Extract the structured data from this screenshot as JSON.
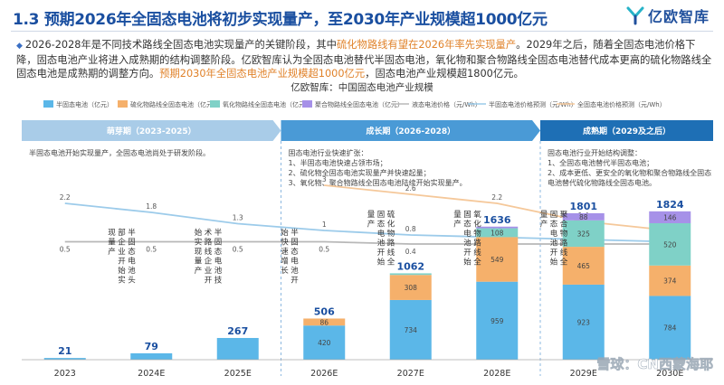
{
  "header": {
    "title": "1.3 预期2026年全固态电池将初步实现量产，至2030年产业规模超1000亿元",
    "logo_text": "亿欧智库"
  },
  "summary": {
    "bullet": "◆",
    "part1": "2026-2028年是不同技术路线全固态电池实现量产的关键阶段，其中",
    "highlight1": "硫化物路线有望在2026年率先实现量产",
    "part2": "。2029年之后，随着全固态电池价格下降，固态电池产业将进入成熟期的结构调整阶段。亿欧智库认为全固态电池替代半固态电池，氧化物和聚合物路线全固态电池替代成本更高的硫化物路线全固态电池是成熟期的调整方向。",
    "highlight2": "预期2030年全固态电池产业规模超1000亿元",
    "part3": "，固态电池产业规模超1800亿元。"
  },
  "chart_data": {
    "type": "bar",
    "title": "亿欧智库：中国固态电池产业规模",
    "categories": [
      "2023",
      "2024E",
      "2025E",
      "2026E",
      "2027E",
      "2028E",
      "2029E",
      "2030E"
    ],
    "series": [
      {
        "name": "半固态电池（亿元）",
        "kind": "bar",
        "color": "#5bb7e8",
        "values": [
          21,
          79,
          267,
          420,
          734,
          959,
          923,
          784
        ]
      },
      {
        "name": "硫化物路线全固态电池（亿元）",
        "kind": "bar",
        "color": "#f5b06b",
        "values": [
          null,
          null,
          null,
          86,
          308,
          549,
          465,
          374
        ]
      },
      {
        "name": "氧化物路线全固态电池（亿元）",
        "kind": "bar",
        "color": "#7fd1c7",
        "values": [
          null,
          null,
          null,
          null,
          20,
          108,
          325,
          520
        ]
      },
      {
        "name": "聚合物路线全固态电池（亿元）",
        "kind": "bar",
        "color": "#a691e8",
        "values": [
          null,
          null,
          null,
          null,
          null,
          20,
          88,
          146
        ]
      },
      {
        "name": "液态电池价格（元/Wh）",
        "kind": "line",
        "color": "#b8b8b8",
        "values": [
          0.5,
          0.5,
          0.5,
          0.5,
          0.4,
          0.4,
          0.4,
          0.4
        ]
      },
      {
        "name": "半固态电池价格预测（元/Wh）",
        "kind": "line",
        "color": "#9ccbea",
        "values": [
          2.2,
          1.8,
          1.3,
          1,
          0.8,
          0.7,
          0.6,
          0.5
        ]
      },
      {
        "name": "全固态电池价格预测（元/Wh）",
        "kind": "line",
        "color": "#f5c89a",
        "values": [
          null,
          null,
          null,
          3,
          2.6,
          2.2,
          1.4,
          1
        ]
      }
    ],
    "totals": [
      21,
      79,
      267,
      506,
      1062,
      1636,
      1801,
      1824
    ],
    "legend_position": "top",
    "grid": false
  },
  "phases": [
    {
      "label": "萌芽期（2023-2025）",
      "color": "#a9cce8",
      "note_lines": [
        "半固态电池开始实现量产，全固态电池尚处于研发阶段。"
      ]
    },
    {
      "label": "成长期（2026-2028）",
      "color": "#4a9ad6",
      "note_lines": [
        "固态电池行业快速扩张：",
        "1、半固态电池快速占领市场；",
        "2、硫化物全固态电池实现量产并快速起量；",
        "3、氧化物、聚合物路线全固态电池陆续开始实现量产。"
      ]
    },
    {
      "label": "成熟期（2029及之后）",
      "color": "#1e6fb5",
      "note_lines": [
        "固态电池行业开始结构调整：",
        "1、全固态电池替代半固态电池；",
        "2、成本更低、更安全的氧化物和聚合物路线全固态",
        "电池替代硫化物路线全固态电池。"
      ]
    }
  ],
  "annotations": [
    {
      "text": "半固态电池头部企业开始实现量产",
      "after": 0
    },
    {
      "text": "半固态电池技术路线企业开始实现量产",
      "after": 1
    },
    {
      "text": "半固态电池开始快速增长",
      "after": 2
    },
    {
      "text": "硫化物路线全固态电池开始量产",
      "after": 3
    },
    {
      "text": "氧化物路线全固态电池开始量产",
      "after": 4
    },
    {
      "text": "聚合物路线全固态电池开始量产",
      "after": 5
    }
  ],
  "watermark": "雪球：CN西蒙海耶"
}
